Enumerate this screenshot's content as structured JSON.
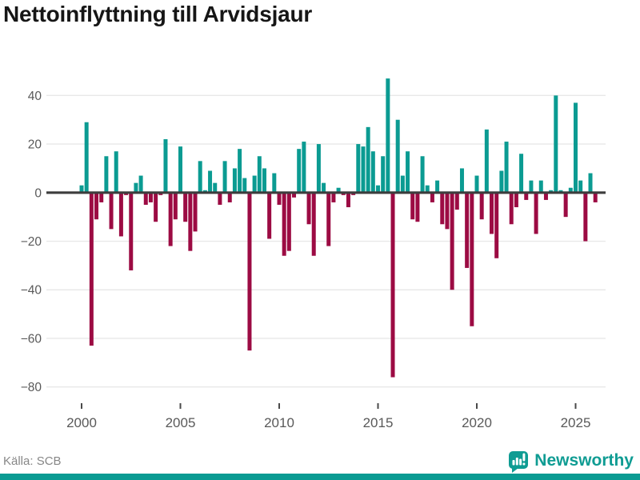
{
  "title": "Nettoinflyttning till Arvidsjaur",
  "source": "Källa: SCB",
  "brand": {
    "name": "Newsworthy"
  },
  "colors": {
    "positive": "#0b9b92",
    "negative": "#9c0b43",
    "zero_axis": "#3d3d3d",
    "grid": "#e8e8e8",
    "tick_text": "#595959",
    "title_text": "#161616",
    "source_text": "#878787",
    "brand_teal": "#0f9c93"
  },
  "chart_data": {
    "type": "bar",
    "title": "Nettoinflyttning till Arvidsjaur",
    "xlabel": "",
    "ylabel": "",
    "unit": "persons per quarter",
    "start": "2000 Q1",
    "end": "2026 Q1",
    "quarters_per_year": 4,
    "start_year": 2000,
    "values": [
      3,
      29,
      -63,
      -11,
      -4,
      15,
      -15,
      17,
      -18,
      -1,
      -32,
      4,
      7,
      -5,
      -4,
      -12,
      -1,
      22,
      -22,
      -11,
      19,
      -12,
      -24,
      -16,
      13,
      1,
      9,
      4,
      -5,
      13,
      -4,
      10,
      18,
      6,
      -65,
      7,
      15,
      10,
      -19,
      8,
      -5,
      -26,
      -24,
      -2,
      18,
      21,
      -13,
      -26,
      20,
      4,
      -22,
      -4,
      2,
      -1,
      -6,
      -1,
      20,
      19,
      27,
      17,
      3,
      15,
      47,
      -76,
      30,
      7,
      17,
      -11,
      -12,
      15,
      3,
      -4,
      5,
      -13,
      -15,
      -40,
      -7,
      10,
      -31,
      -55,
      7,
      -11,
      26,
      -17,
      -27,
      9,
      21,
      -13,
      -6,
      16,
      -3,
      5,
      -17,
      5,
      -3,
      1,
      40,
      1,
      -10,
      2,
      37,
      5,
      -20,
      8,
      -4
    ],
    "yticks": [
      40,
      20,
      0,
      -20,
      -40,
      -60,
      -80
    ],
    "ytick_labels": [
      "40",
      "20",
      "0",
      "−20",
      "−40",
      "−60",
      "−80"
    ],
    "xticks": [
      2000,
      2005,
      2010,
      2015,
      2020,
      2025
    ],
    "ylim": [
      -80,
      47
    ],
    "grid": true,
    "legend": false
  }
}
